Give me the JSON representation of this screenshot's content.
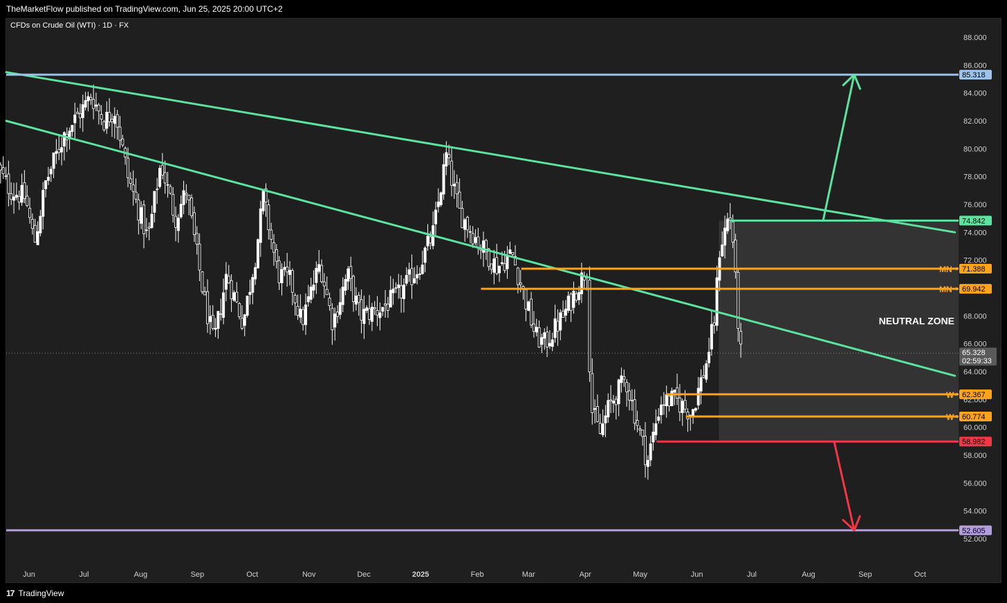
{
  "header": {
    "published": "TheMarketFlow published on TradingView.com, Jun 25, 2025 20:00 UTC+2"
  },
  "footer": {
    "brand": "TradingView"
  },
  "colors": {
    "background": "#1f1f1f",
    "trendline": "#5ce3a0",
    "target_up": "#9cc3ec",
    "target_down": "#b39ddb",
    "support_resistance": "#ffa31a",
    "stop": "#f23645",
    "zone": "#3b3b3b",
    "candle": "#ffffff"
  },
  "chart_data": {
    "type": "candlestick",
    "title": "CFDs on Crude Oil (WTI) · 1D · FX",
    "y_axis": {
      "position": "right",
      "range": [
        51.5,
        89.0
      ],
      "ticks": [
        "52.000",
        "54.000",
        "56.000",
        "58.000",
        "60.000",
        "62.000",
        "64.000",
        "66.000",
        "68.000",
        "70.000",
        "72.000",
        "74.000",
        "76.000",
        "78.000",
        "80.000",
        "82.000",
        "84.000",
        "86.000",
        "88.000"
      ]
    },
    "x_axis": {
      "labels": [
        {
          "label": "Jun",
          "date": "2024-06-01"
        },
        {
          "label": "Jul",
          "date": "2024-07-01"
        },
        {
          "label": "Aug",
          "date": "2024-08-01"
        },
        {
          "label": "Sep",
          "date": "2024-09-01"
        },
        {
          "label": "Oct",
          "date": "2024-10-01"
        },
        {
          "label": "Nov",
          "date": "2024-11-01"
        },
        {
          "label": "Dec",
          "date": "2024-12-01"
        },
        {
          "label": "2025",
          "date": "2025-01-01",
          "bold": true
        },
        {
          "label": "Feb",
          "date": "2025-02-01"
        },
        {
          "label": "Mar",
          "date": "2025-03-01"
        },
        {
          "label": "Apr",
          "date": "2025-04-01"
        },
        {
          "label": "May",
          "date": "2025-05-01"
        },
        {
          "label": "Jun",
          "date": "2025-06-01"
        },
        {
          "label": "Jul",
          "date": "2025-07-01"
        },
        {
          "label": "Aug",
          "date": "2025-08-01"
        },
        {
          "label": "Sep",
          "date": "2025-09-01"
        },
        {
          "label": "Oct",
          "date": "2025-10-01"
        }
      ]
    },
    "price_path": [
      {
        "date": "2024-05-15",
        "close": 78.5
      },
      {
        "date": "2024-05-22",
        "close": 77.0
      },
      {
        "date": "2024-05-30",
        "close": 76.5
      },
      {
        "date": "2024-06-04",
        "close": 73.2
      },
      {
        "date": "2024-06-10",
        "close": 77.5
      },
      {
        "date": "2024-06-20",
        "close": 81.0
      },
      {
        "date": "2024-07-01",
        "close": 83.0
      },
      {
        "date": "2024-07-05",
        "close": 83.8
      },
      {
        "date": "2024-07-12",
        "close": 82.0
      },
      {
        "date": "2024-07-18",
        "close": 82.8
      },
      {
        "date": "2024-07-25",
        "close": 78.0
      },
      {
        "date": "2024-08-05",
        "close": 73.5
      },
      {
        "date": "2024-08-12",
        "close": 79.0
      },
      {
        "date": "2024-08-20",
        "close": 75.0
      },
      {
        "date": "2024-08-26",
        "close": 77.0
      },
      {
        "date": "2024-09-05",
        "close": 69.0
      },
      {
        "date": "2024-09-10",
        "close": 66.0
      },
      {
        "date": "2024-09-17",
        "close": 71.0
      },
      {
        "date": "2024-09-26",
        "close": 67.5
      },
      {
        "date": "2024-10-03",
        "close": 72.5
      },
      {
        "date": "2024-10-07",
        "close": 76.5
      },
      {
        "date": "2024-10-15",
        "close": 71.0
      },
      {
        "date": "2024-10-22",
        "close": 70.5
      },
      {
        "date": "2024-10-28",
        "close": 67.5
      },
      {
        "date": "2024-11-07",
        "close": 71.8
      },
      {
        "date": "2024-11-14",
        "close": 67.5
      },
      {
        "date": "2024-11-22",
        "close": 71.0
      },
      {
        "date": "2024-11-29",
        "close": 68.0
      },
      {
        "date": "2024-12-10",
        "close": 68.5
      },
      {
        "date": "2024-12-20",
        "close": 69.5
      },
      {
        "date": "2024-12-31",
        "close": 71.5
      },
      {
        "date": "2025-01-08",
        "close": 74.0
      },
      {
        "date": "2025-01-15",
        "close": 79.5
      },
      {
        "date": "2025-01-22",
        "close": 75.5
      },
      {
        "date": "2025-02-03",
        "close": 73.0
      },
      {
        "date": "2025-02-12",
        "close": 71.5
      },
      {
        "date": "2025-02-20",
        "close": 72.5
      },
      {
        "date": "2025-03-05",
        "close": 66.5
      },
      {
        "date": "2025-03-10",
        "close": 66.0
      },
      {
        "date": "2025-03-20",
        "close": 68.0
      },
      {
        "date": "2025-04-02",
        "close": 71.5
      },
      {
        "date": "2025-04-04",
        "close": 61.5
      },
      {
        "date": "2025-04-09",
        "close": 59.5
      },
      {
        "date": "2025-04-14",
        "close": 61.5
      },
      {
        "date": "2025-04-23",
        "close": 63.5
      },
      {
        "date": "2025-05-05",
        "close": 57.5
      },
      {
        "date": "2025-05-12",
        "close": 61.8
      },
      {
        "date": "2025-05-20",
        "close": 62.0
      },
      {
        "date": "2025-05-29",
        "close": 61.0
      },
      {
        "date": "2025-06-06",
        "close": 64.5
      },
      {
        "date": "2025-06-11",
        "close": 68.0
      },
      {
        "date": "2025-06-13",
        "close": 72.5
      },
      {
        "date": "2025-06-18",
        "close": 75.0
      },
      {
        "date": "2025-06-20",
        "close": 74.9
      },
      {
        "date": "2025-06-23",
        "close": 68.5
      },
      {
        "date": "2025-06-25",
        "close": 65.3
      }
    ],
    "candle_range": {
      "start": "2024-05-15",
      "end": "2025-06-25",
      "step_days": 1.45
    },
    "trendlines": [
      {
        "name": "upper-trendline",
        "from": {
          "date": "2024-05-15",
          "price": 85.5
        },
        "to": {
          "date": "2025-10-20",
          "price": 74.0
        }
      },
      {
        "name": "lower-trendline",
        "from": {
          "date": "2024-05-15",
          "price": 82.0
        },
        "to": {
          "date": "2025-10-20",
          "price": 63.7
        }
      }
    ],
    "levels": [
      {
        "name": "target-up-line",
        "price": 85.318,
        "label": "85.318",
        "tag": "",
        "color": "#9cc3ec",
        "from": "2024-05-15",
        "to": "2025-10-20"
      },
      {
        "name": "resistance-line",
        "price": 74.842,
        "label": "74.842",
        "tag": "",
        "color": "#5ce3a0",
        "from": "2025-06-19",
        "to": "2025-10-20"
      },
      {
        "name": "mn-upper-line",
        "price": 71.388,
        "label": "71.388",
        "tag": "MN",
        "color": "#ffa31a",
        "from": "2025-02-25",
        "to": "2025-10-20"
      },
      {
        "name": "mn-lower-line",
        "price": 69.942,
        "label": "69.942",
        "tag": "MN",
        "color": "#ffa31a",
        "from": "2025-02-03",
        "to": "2025-10-20"
      },
      {
        "name": "w-upper-line",
        "price": 62.367,
        "label": "62.367",
        "tag": "W",
        "color": "#ffa31a",
        "from": "2025-05-15",
        "to": "2025-10-20"
      },
      {
        "name": "w-lower-line",
        "price": 60.774,
        "label": "60.774",
        "tag": "W",
        "color": "#ffa31a",
        "from": "2025-05-26",
        "to": "2025-10-20"
      },
      {
        "name": "stop-line",
        "price": 58.982,
        "label": "58.982",
        "tag": "",
        "color": "#f23645",
        "from": "2025-05-10",
        "to": "2025-10-20"
      },
      {
        "name": "target-down-line",
        "price": 52.605,
        "label": "52.605",
        "tag": "",
        "color": "#b39ddb",
        "from": "2024-05-15",
        "to": "2025-10-20"
      }
    ],
    "current_price": {
      "price": 65.328,
      "label": "65.328",
      "countdown": "02:59:33"
    },
    "zone": {
      "label": "NEUTRAL ZONE",
      "from": "2025-06-13",
      "to": "2025-10-20",
      "top": 74.842,
      "bottom": 58.982
    },
    "arrows": [
      {
        "name": "breakout-arrow",
        "from": {
          "date": "2025-08-09",
          "price": 74.842
        },
        "to": {
          "date": "2025-08-26",
          "price": 85.318
        },
        "color": "#5ce3a0"
      },
      {
        "name": "breakdown-arrow",
        "from": {
          "date": "2025-08-15",
          "price": 58.982
        },
        "to": {
          "date": "2025-08-26",
          "price": 52.605
        },
        "color": "#f23645"
      }
    ]
  }
}
